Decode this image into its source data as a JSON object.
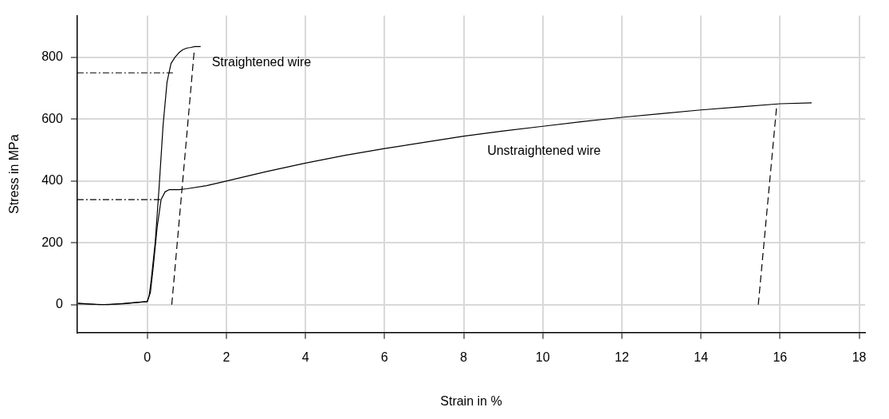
{
  "chart_data": {
    "type": "line",
    "xlabel": "Strain in %",
    "ylabel": "Stress in MPa",
    "xlim": [
      -1.77,
      18.15
    ],
    "xticks": [
      0,
      2,
      4,
      6,
      8,
      10,
      12,
      14,
      16,
      18
    ],
    "ylim": [
      -90,
      935
    ],
    "yticks": [
      0,
      200,
      400,
      600,
      800
    ],
    "grid": true,
    "legend": false,
    "marker": "none",
    "series": [
      {
        "name": "Straightened wire",
        "color": "#000000",
        "line_style": "solid",
        "x": [
          -1.75,
          -1.2,
          -0.6,
          -0.2,
          0,
          0.05,
          0.1,
          0.2,
          0.3,
          0.4,
          0.5,
          0.6,
          0.7,
          0.8,
          0.9,
          1.0,
          1.1,
          1.2,
          1.35
        ],
        "values": [
          5,
          0,
          3,
          8,
          10,
          30,
          80,
          200,
          380,
          580,
          720,
          780,
          800,
          815,
          825,
          830,
          832,
          835,
          835
        ]
      },
      {
        "name": "Unstraightened wire",
        "color": "#000000",
        "line_style": "solid",
        "x": [
          -1.75,
          -1,
          -0.5,
          0,
          0.08,
          0.15,
          0.25,
          0.35,
          0.45,
          0.55,
          0.8,
          1,
          1.5,
          2,
          3,
          4,
          5,
          6,
          7,
          8,
          9,
          10,
          11,
          12,
          13,
          14,
          15,
          16,
          16.8
        ],
        "values": [
          3,
          0,
          5,
          10,
          40,
          120,
          250,
          340,
          365,
          372,
          372,
          375,
          385,
          400,
          430,
          458,
          483,
          505,
          525,
          545,
          562,
          577,
          592,
          606,
          618,
          630,
          640,
          650,
          653
        ]
      },
      {
        "color": "#000000",
        "line_style": "dashed",
        "x": [
          0.62,
          1.19
        ],
        "values": [
          0,
          825
        ]
      },
      {
        "color": "#000000",
        "line_style": "dashed",
        "x": [
          15.45,
          15.92
        ],
        "values": [
          0,
          650
        ]
      },
      {
        "color": "#000000",
        "line_style": "dotted",
        "x": [
          -1.77,
          0.65
        ],
        "values": [
          750,
          750
        ]
      },
      {
        "color": "#000000",
        "line_style": "dotted",
        "x": [
          -1.77,
          0.35
        ],
        "values": [
          340,
          340
        ]
      }
    ]
  }
}
